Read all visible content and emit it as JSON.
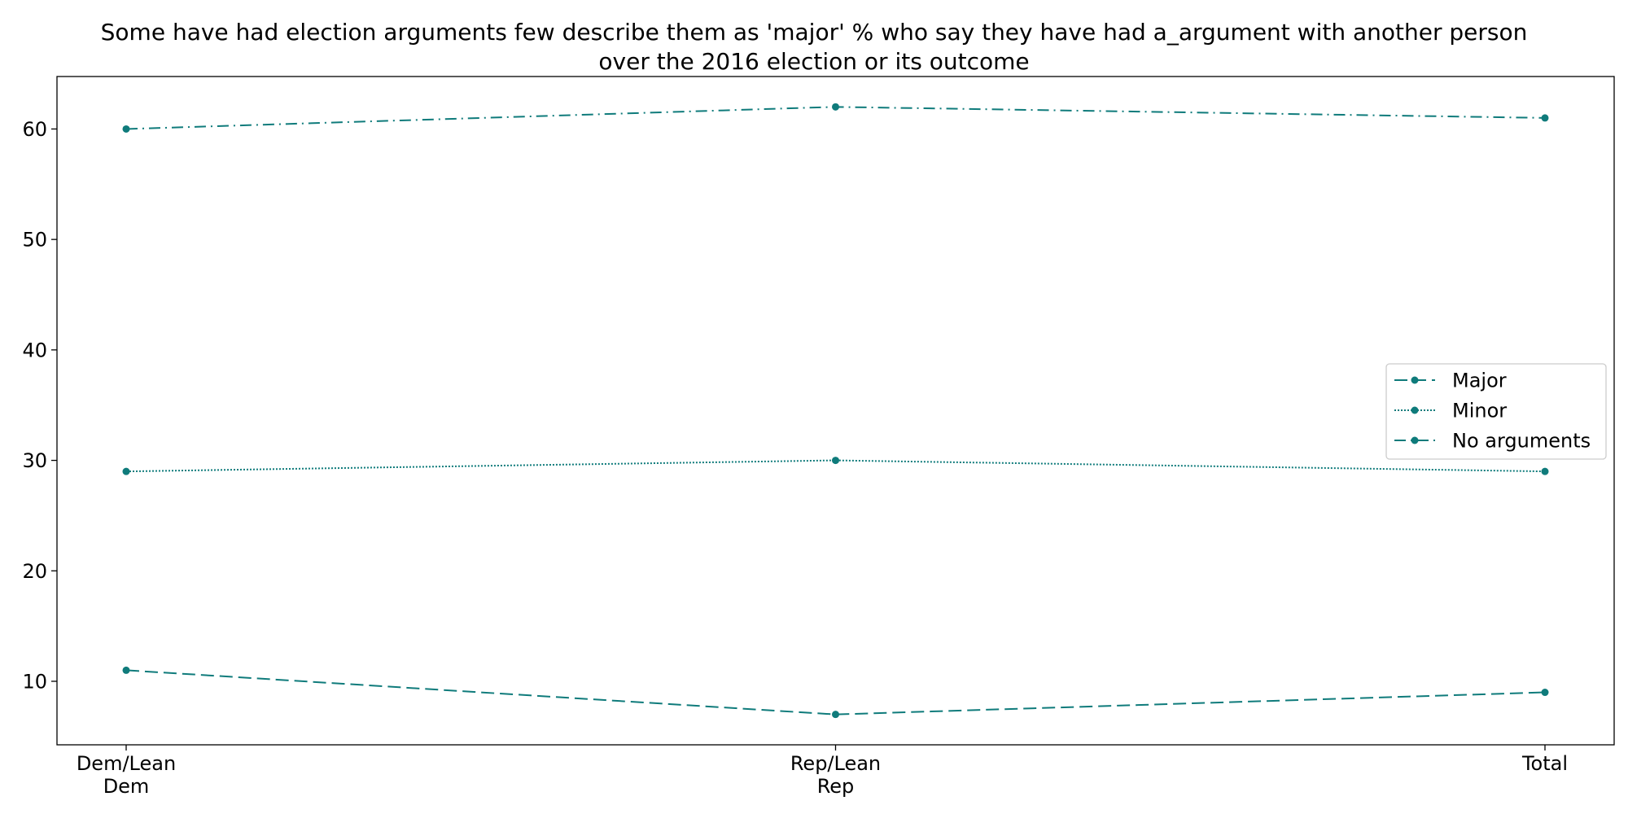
{
  "chart_data": {
    "type": "line",
    "title_lines": [
      "Some have had election arguments few describe them as 'major' % who say they have had a_argument with another person",
      "over the 2016 election or its outcome"
    ],
    "xlabel": "",
    "ylabel": "",
    "categories": [
      [
        "Dem/Lean",
        "Dem"
      ],
      [
        "Rep/Lean",
        "Rep"
      ],
      [
        "Total"
      ]
    ],
    "ylim": [
      4.25,
      64.75
    ],
    "yticks": [
      10,
      20,
      30,
      40,
      50,
      60
    ],
    "grid": false,
    "legend_position": "center-right",
    "color": "#0f7b7b",
    "series": [
      {
        "name": "Major",
        "values": [
          11,
          7,
          9
        ],
        "dash": "16,7"
      },
      {
        "name": "Minor",
        "values": [
          29,
          30,
          29
        ],
        "dash": "2,2"
      },
      {
        "name": "No arguments",
        "values": [
          60,
          62,
          61
        ],
        "dash": "14,6,2,6"
      }
    ]
  }
}
